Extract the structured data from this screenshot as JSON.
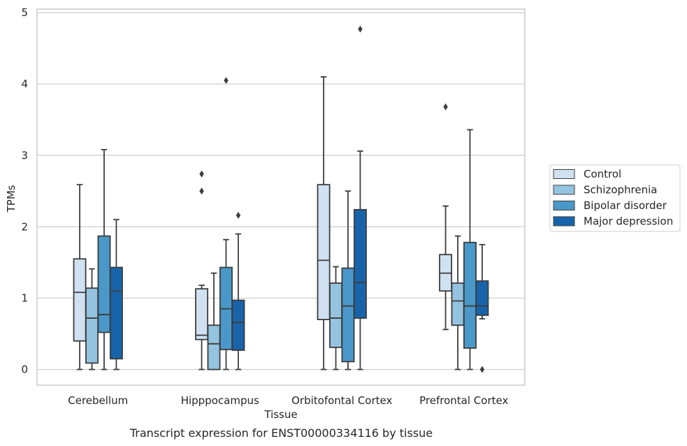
{
  "chart_data": {
    "type": "boxplot",
    "xlabel": "Tissue",
    "ylabel": "TPMs",
    "caption": "Transcript expression for ENST00000334116 by tissue",
    "ylim": [
      -0.22,
      5.05
    ],
    "yticks": [
      0,
      1,
      2,
      3,
      4,
      5
    ],
    "grid": true,
    "legend_position": "right",
    "categories": [
      "Cerebellum",
      "Hipppocampus",
      "Orbitofontal Cortex",
      "Prefrontal Cortex"
    ],
    "series": [
      {
        "name": "Control",
        "color": "#d0e1f2",
        "boxes": [
          {
            "whislo": 0.0,
            "q1": 0.4,
            "med": 1.08,
            "q3": 1.55,
            "whishi": 2.59,
            "fliers": []
          },
          {
            "whislo": 0.0,
            "q1": 0.42,
            "med": 0.48,
            "q3": 1.13,
            "whishi": 1.18,
            "fliers": [
              2.5,
              2.74
            ]
          },
          {
            "whislo": 0.0,
            "q1": 0.7,
            "med": 1.53,
            "q3": 2.59,
            "whishi": 4.1,
            "fliers": []
          },
          {
            "whislo": 0.56,
            "q1": 1.1,
            "med": 1.35,
            "q3": 1.61,
            "whishi": 2.29,
            "fliers": [
              3.68
            ]
          }
        ]
      },
      {
        "name": "Schizophrenia",
        "color": "#94c4df",
        "boxes": [
          {
            "whislo": 0.0,
            "q1": 0.09,
            "med": 0.72,
            "q3": 1.14,
            "whishi": 1.41,
            "fliers": []
          },
          {
            "whislo": 0.0,
            "q1": 0.0,
            "med": 0.36,
            "q3": 0.62,
            "whishi": 1.35,
            "fliers": []
          },
          {
            "whislo": 0.0,
            "q1": 0.31,
            "med": 0.72,
            "q3": 1.21,
            "whishi": 1.44,
            "fliers": []
          },
          {
            "whislo": 0.0,
            "q1": 0.62,
            "med": 0.96,
            "q3": 1.21,
            "whishi": 1.87,
            "fliers": []
          }
        ]
      },
      {
        "name": "Bipolar disorder",
        "color": "#4a98c9",
        "boxes": [
          {
            "whislo": 0.0,
            "q1": 0.52,
            "med": 0.77,
            "q3": 1.87,
            "whishi": 3.08,
            "fliers": []
          },
          {
            "whislo": 0.0,
            "q1": 0.28,
            "med": 0.85,
            "q3": 1.43,
            "whishi": 1.82,
            "fliers": [
              4.05
            ]
          },
          {
            "whislo": 0.0,
            "q1": 0.11,
            "med": 0.89,
            "q3": 1.42,
            "whishi": 2.5,
            "fliers": []
          },
          {
            "whislo": 0.0,
            "q1": 0.3,
            "med": 0.89,
            "q3": 1.78,
            "whishi": 3.36,
            "fliers": []
          }
        ]
      },
      {
        "name": "Major depression",
        "color": "#1764ab",
        "boxes": [
          {
            "whislo": 0.0,
            "q1": 0.15,
            "med": 1.1,
            "q3": 1.43,
            "whishi": 2.1,
            "fliers": []
          },
          {
            "whislo": 0.0,
            "q1": 0.27,
            "med": 0.66,
            "q3": 0.97,
            "whishi": 1.9,
            "fliers": [
              2.16
            ]
          },
          {
            "whislo": 0.0,
            "q1": 0.72,
            "med": 1.22,
            "q3": 2.24,
            "whishi": 3.06,
            "fliers": [
              4.77
            ]
          },
          {
            "whislo": 0.71,
            "q1": 0.76,
            "med": 0.89,
            "q3": 1.24,
            "whishi": 1.75,
            "fliers": [
              0.0
            ]
          }
        ]
      }
    ]
  }
}
